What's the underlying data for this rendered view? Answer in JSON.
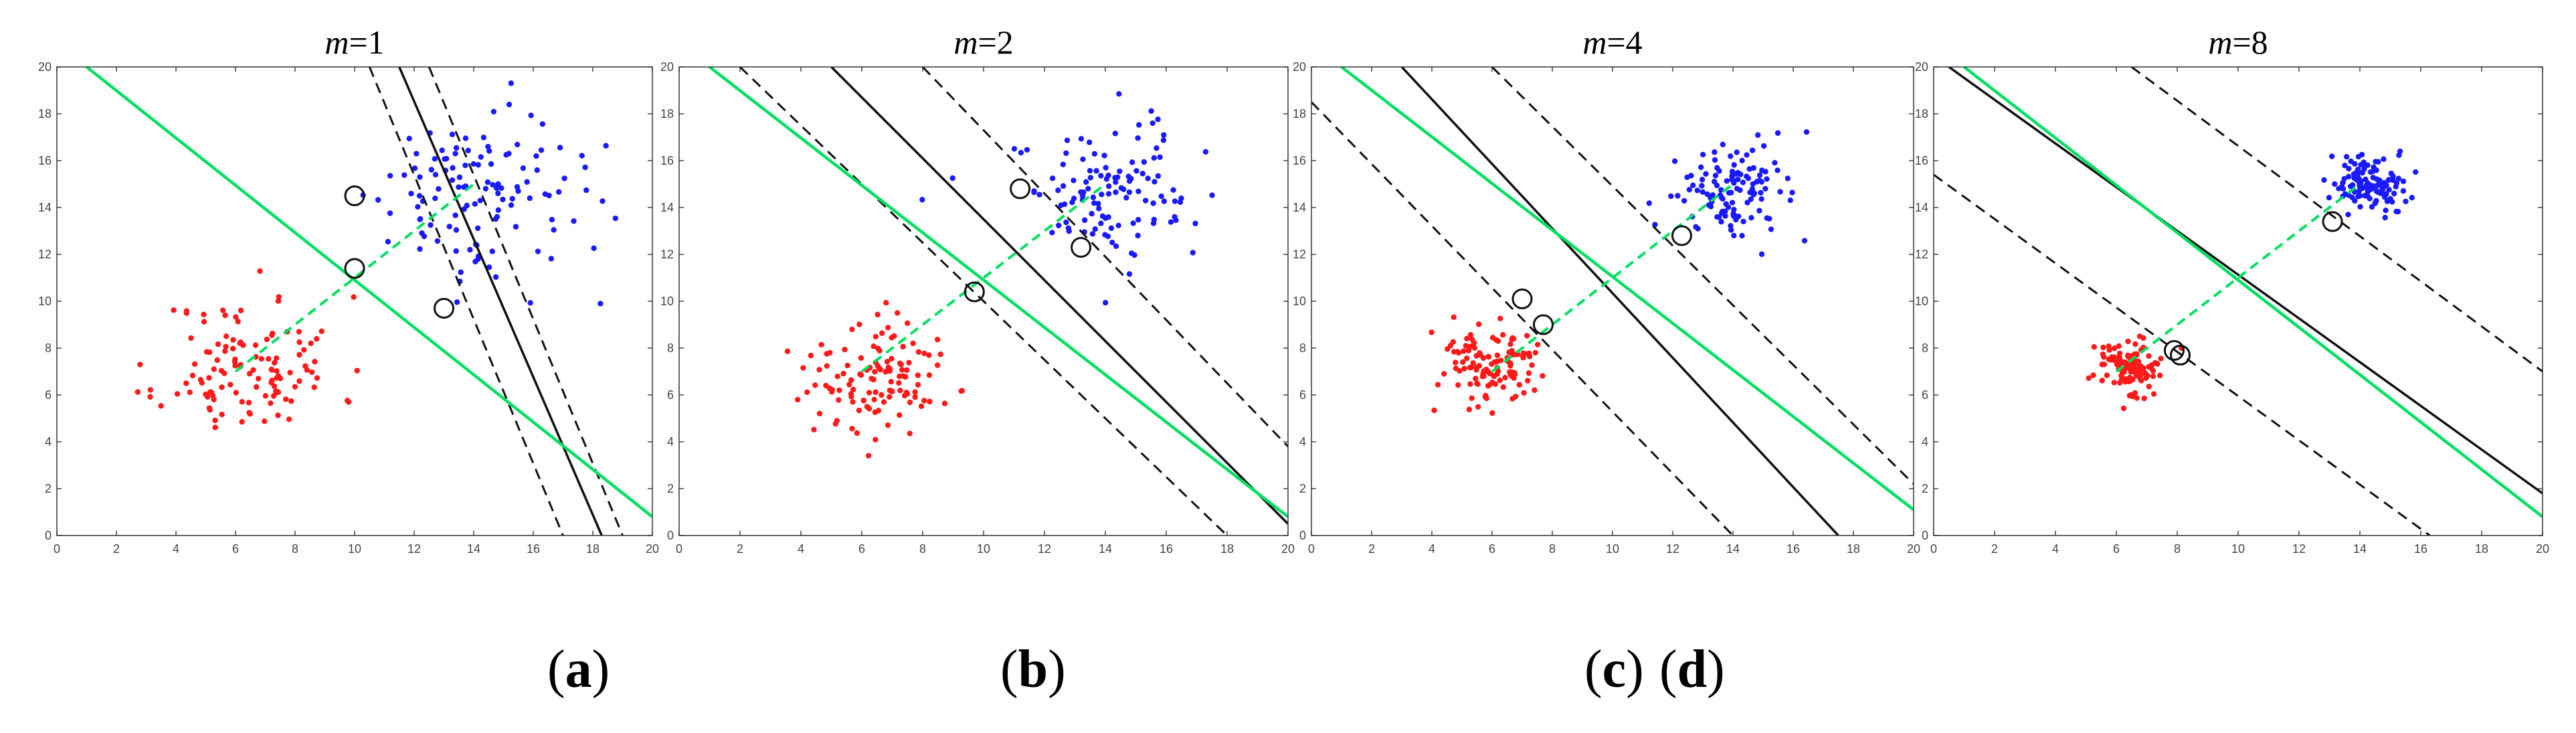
{
  "figure": {
    "captions": [
      {
        "open": "(",
        "letter": "a",
        "close": ")"
      },
      {
        "open": "(",
        "letter": "b",
        "close": ")"
      },
      {
        "open": "(",
        "letter": "c",
        "close": ")"
      },
      {
        "open": "(",
        "letter": "d",
        "close": ")"
      }
    ]
  },
  "chart_data": [
    {
      "type": "scatter",
      "title_var": "m",
      "title_eq": "=1",
      "xlim": [
        0,
        20
      ],
      "ylim": [
        0,
        20
      ],
      "xticks": [
        0,
        2,
        4,
        6,
        8,
        10,
        12,
        14,
        16,
        18,
        20
      ],
      "yticks": [
        0,
        2,
        4,
        6,
        8,
        10,
        12,
        14,
        16,
        18,
        20
      ],
      "colors": {
        "class1": "#ff1a1a",
        "class2": "#1a1aff",
        "green": "#00e060",
        "black": "#111111"
      },
      "class1": {
        "center": [
          6.5,
          7.2
        ],
        "spread": 1.5,
        "count": 120,
        "seed": 11
      },
      "class2": {
        "center": [
          14,
          14.6
        ],
        "spread": 1.8,
        "count": 120,
        "seed": 29
      },
      "green_line": [
        [
          1,
          20
        ],
        [
          20,
          0.8
        ]
      ],
      "black_line": [
        [
          11.5,
          20
        ],
        [
          18.3,
          0
        ]
      ],
      "dashed_lines": [
        [
          [
            10.5,
            20
          ],
          [
            17,
            0
          ]
        ],
        [
          [
            12.5,
            20
          ],
          [
            19,
            0
          ]
        ]
      ],
      "connector": [
        [
          6,
          7
        ],
        [
          14,
          15
        ]
      ],
      "support_vectors": [
        [
          10,
          14.5
        ],
        [
          10,
          11.4
        ],
        [
          13,
          9.7
        ]
      ]
    },
    {
      "type": "scatter",
      "title_var": "m",
      "title_eq": "=2",
      "xlim": [
        0,
        20
      ],
      "ylim": [
        0,
        20
      ],
      "xticks": [
        0,
        2,
        4,
        6,
        8,
        10,
        12,
        14,
        16,
        18,
        20
      ],
      "yticks": [
        0,
        2,
        4,
        6,
        8,
        10,
        12,
        14,
        16,
        18,
        20
      ],
      "colors": {
        "class1": "#ff1a1a",
        "class2": "#1a1aff",
        "green": "#00e060",
        "black": "#111111"
      },
      "class1": {
        "center": [
          6.5,
          6.9
        ],
        "spread": 1.3,
        "count": 120,
        "seed": 43
      },
      "class2": {
        "center": [
          14,
          14.5
        ],
        "spread": 1.5,
        "count": 120,
        "seed": 57
      },
      "green_line": [
        [
          1,
          20
        ],
        [
          20,
          0.8
        ]
      ],
      "black_line": [
        [
          5,
          20
        ],
        [
          20,
          0.5
        ]
      ],
      "dashed_lines": [
        [
          [
            2,
            20
          ],
          [
            18,
            0
          ]
        ],
        [
          [
            8,
            20
          ],
          [
            20,
            3.8
          ]
        ]
      ],
      "connector": [
        [
          6,
          7
        ],
        [
          14,
          15
        ]
      ],
      "support_vectors": [
        [
          11.2,
          14.8
        ],
        [
          13.2,
          12.3
        ],
        [
          9.7,
          10.4
        ]
      ]
    },
    {
      "type": "scatter",
      "title_var": "m",
      "title_eq": "=4",
      "xlim": [
        0,
        20
      ],
      "ylim": [
        0,
        20
      ],
      "xticks": [
        0,
        2,
        4,
        6,
        8,
        10,
        12,
        14,
        16,
        18,
        20
      ],
      "yticks": [
        0,
        2,
        4,
        6,
        8,
        10,
        12,
        14,
        16,
        18,
        20
      ],
      "colors": {
        "class1": "#ff1a1a",
        "class2": "#1a1aff",
        "green": "#00e060",
        "black": "#111111"
      },
      "class1": {
        "center": [
          6,
          7.2
        ],
        "spread": 0.9,
        "count": 120,
        "seed": 71
      },
      "class2": {
        "center": [
          14,
          14.7
        ],
        "spread": 1.0,
        "count": 120,
        "seed": 83
      },
      "green_line": [
        [
          1,
          20
        ],
        [
          20,
          1.1
        ]
      ],
      "black_line": [
        [
          3,
          20
        ],
        [
          17.5,
          0
        ]
      ],
      "dashed_lines": [
        [
          [
            0,
            18.5
          ],
          [
            14,
            0
          ]
        ],
        [
          [
            6,
            20
          ],
          [
            20,
            2.2
          ]
        ]
      ],
      "connector": [
        [
          6,
          7
        ],
        [
          14,
          15
        ]
      ],
      "support_vectors": [
        [
          7,
          10.1
        ],
        [
          7.7,
          9
        ],
        [
          12.3,
          12.8
        ]
      ]
    },
    {
      "type": "scatter",
      "title_var": "m",
      "title_eq": "=8",
      "xlim": [
        0,
        20
      ],
      "ylim": [
        0,
        20
      ],
      "xticks": [
        0,
        2,
        4,
        6,
        8,
        10,
        12,
        14,
        16,
        18,
        20
      ],
      "yticks": [
        0,
        2,
        4,
        6,
        8,
        10,
        12,
        14,
        16,
        18,
        20
      ],
      "colors": {
        "class1": "#ff1a1a",
        "class2": "#1a1aff",
        "green": "#00e060",
        "black": "#111111"
      },
      "class1": {
        "center": [
          6.3,
          7.2
        ],
        "spread": 0.6,
        "count": 120,
        "seed": 97
      },
      "class2": {
        "center": [
          14.3,
          15
        ],
        "spread": 0.6,
        "count": 120,
        "seed": 101
      },
      "green_line": [
        [
          1,
          20
        ],
        [
          20,
          0.8
        ]
      ],
      "black_line": [
        [
          0.5,
          20
        ],
        [
          20,
          1.8
        ]
      ],
      "dashed_lines": [
        [
          [
            0,
            15.4
          ],
          [
            16.3,
            0
          ]
        ],
        [
          [
            6.5,
            20
          ],
          [
            20,
            7
          ]
        ]
      ],
      "connector": [
        [
          6,
          7
        ],
        [
          14,
          15
        ]
      ],
      "support_vectors": [
        [
          7.9,
          7.9
        ],
        [
          8.1,
          7.7
        ],
        [
          13.1,
          13.4
        ]
      ]
    }
  ]
}
